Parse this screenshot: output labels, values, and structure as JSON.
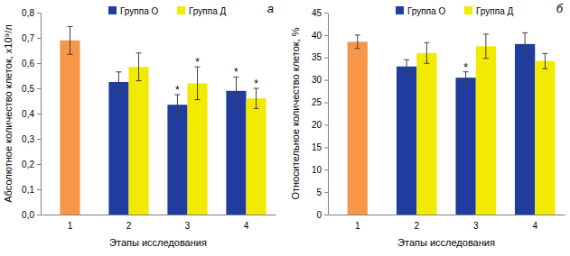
{
  "chart_data": [
    {
      "type": "bar",
      "title": "а",
      "x_label": "Этапы исследования",
      "y_label": "Абсолютное количество клеток, х10⁹/л",
      "categories": [
        "1",
        "2",
        "3",
        "4"
      ],
      "series": [
        {
          "color": "#f79646",
          "values": [
            0.69,
            null,
            null,
            null
          ],
          "errors": [
            0.055,
            null,
            null,
            null
          ],
          "annotations": [
            null,
            null,
            null,
            null
          ]
        },
        {
          "name": "Группа О",
          "color": "#1f3c9e",
          "values": [
            null,
            0.525,
            0.435,
            0.49
          ],
          "errors": [
            null,
            0.04,
            0.04,
            0.055
          ],
          "annotations": [
            null,
            null,
            "*",
            "*"
          ]
        },
        {
          "name": "Группа Д",
          "color": "#f2ea00",
          "values": [
            null,
            0.585,
            0.52,
            0.46
          ],
          "errors": [
            null,
            0.055,
            0.065,
            0.04
          ],
          "annotations": [
            null,
            null,
            "*",
            "*"
          ]
        }
      ],
      "ylim": [
        0,
        0.8
      ],
      "yticks": [
        {
          "value": 0,
          "label": "0,0"
        },
        {
          "value": 0.1,
          "label": "0,1"
        },
        {
          "value": 0.2,
          "label": "0,2"
        },
        {
          "value": 0.3,
          "label": "0,3"
        },
        {
          "value": 0.4,
          "label": "0,4"
        },
        {
          "value": 0.5,
          "label": "0,5"
        },
        {
          "value": 0.6,
          "label": "0,6"
        },
        {
          "value": 0.7,
          "label": "0,7"
        },
        {
          "value": 0.8,
          "label": "0,8"
        }
      ],
      "grid": false,
      "legend": "top"
    },
    {
      "type": "bar",
      "title": "б",
      "x_label": "Этапы исследования",
      "y_label": "Относительное количество клеток, %",
      "categories": [
        "1",
        "2",
        "3",
        "4"
      ],
      "series": [
        {
          "color": "#f79646",
          "values": [
            38.5,
            null,
            null,
            null
          ],
          "errors": [
            1.5,
            null,
            null,
            null
          ],
          "annotations": [
            null,
            null,
            null,
            null
          ]
        },
        {
          "name": "Группа О",
          "color": "#1f3c9e",
          "values": [
            null,
            33,
            30.5,
            38
          ],
          "errors": [
            null,
            1.5,
            1.3,
            2.5
          ],
          "annotations": [
            null,
            null,
            "*",
            null
          ]
        },
        {
          "name": "Группа Д",
          "color": "#f2ea00",
          "values": [
            null,
            36,
            37.5,
            34.2
          ],
          "errors": [
            null,
            2.3,
            2.7,
            1.7
          ],
          "annotations": [
            null,
            null,
            null,
            null
          ]
        }
      ],
      "ylim": [
        0,
        45
      ],
      "yticks": [
        0,
        5,
        10,
        15,
        20,
        25,
        30,
        35,
        40,
        45
      ],
      "grid": false,
      "legend": "top"
    }
  ]
}
